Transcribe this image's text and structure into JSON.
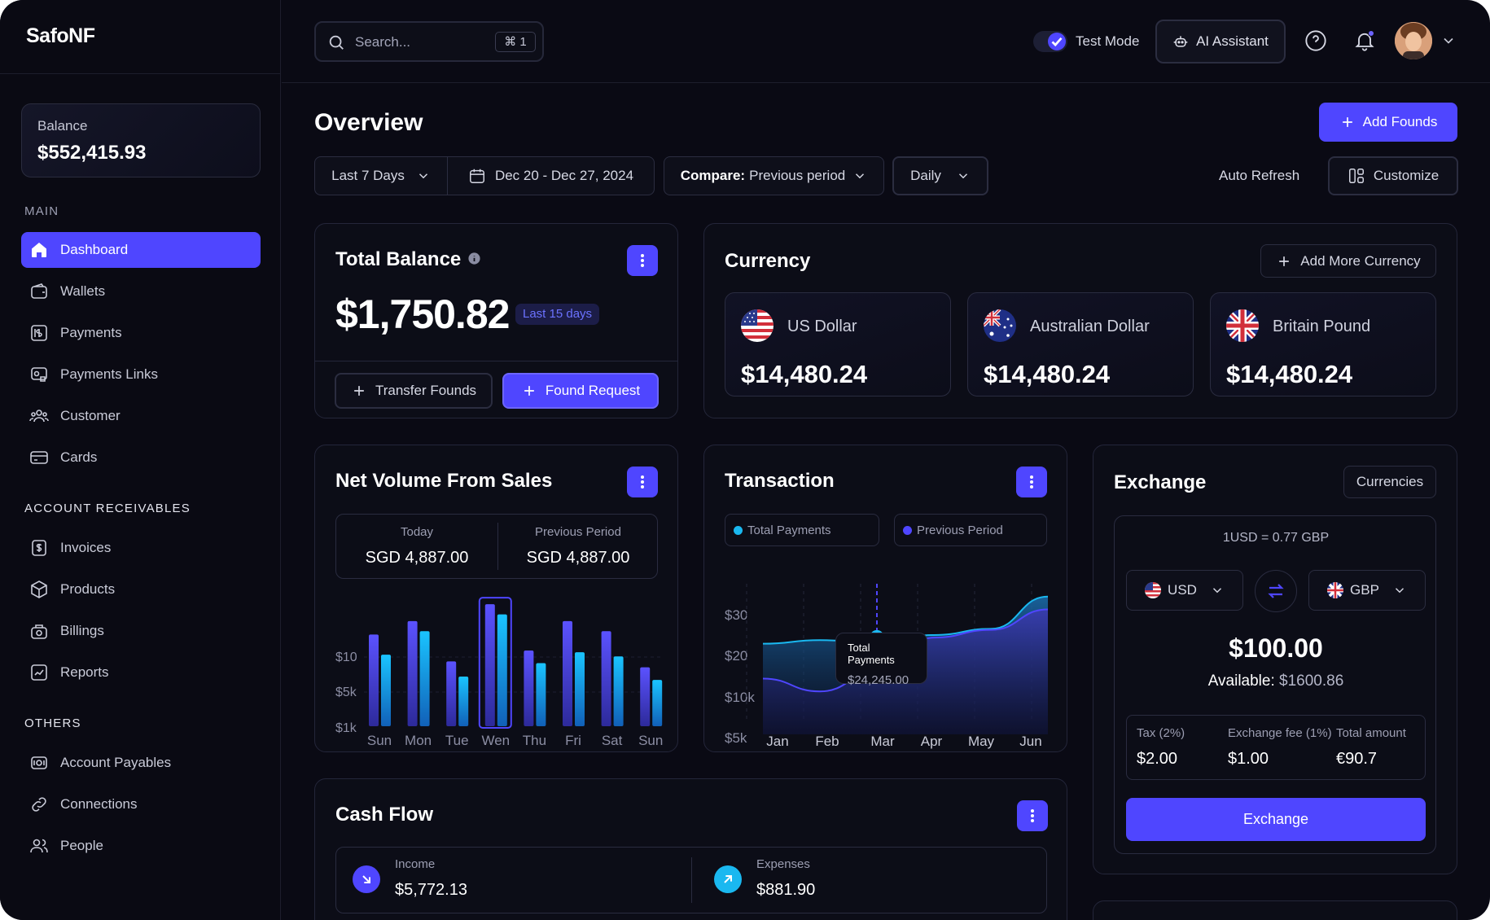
{
  "app": {
    "logo": "SafoNF"
  },
  "sidebar": {
    "balance_label": "Balance",
    "balance_value": "$552,415.93",
    "sections": {
      "main": "MAIN",
      "receivables": "ACCOUNT RECEIVABLES",
      "others": "OTHERS"
    },
    "main_items": [
      {
        "label": "Dashboard",
        "icon": "home-icon",
        "active": true
      },
      {
        "label": "Wallets",
        "icon": "wallet-icon"
      },
      {
        "label": "Payments",
        "icon": "payment-icon"
      },
      {
        "label": "Payments Links",
        "icon": "link-card-icon"
      },
      {
        "label": "Customer",
        "icon": "users-icon"
      },
      {
        "label": "Cards",
        "icon": "card-icon"
      }
    ],
    "receivable_items": [
      {
        "label": "Invoices",
        "icon": "invoice-icon"
      },
      {
        "label": "Products",
        "icon": "box-icon"
      },
      {
        "label": "Billings",
        "icon": "billing-icon"
      },
      {
        "label": "Reports",
        "icon": "report-icon"
      }
    ],
    "other_items": [
      {
        "label": "Account Payables",
        "icon": "payables-icon"
      },
      {
        "label": "Connections",
        "icon": "chain-link-icon"
      },
      {
        "label": "People",
        "icon": "people-icon"
      }
    ]
  },
  "topbar": {
    "search_placeholder": "Search...",
    "search_shortcut": "⌘ 1",
    "test_mode_label": "Test Mode",
    "ai_assistant_label": "AI Assistant"
  },
  "overview": {
    "title": "Overview",
    "add_funds_label": "Add Founds",
    "range_label": "Last 7 Days",
    "date_range": "Dec 20 - Dec 27, 2024",
    "compare_label": "Compare:",
    "compare_value": "Previous period",
    "interval": "Daily",
    "auto_refresh": "Auto Refresh",
    "customize": "Customize"
  },
  "total_balance": {
    "title": "Total Balance",
    "amount": "$1,750.82",
    "badge": "Last 15 days",
    "transfer_label": "Transfer Founds",
    "request_label": "Found Request"
  },
  "currency": {
    "title": "Currency",
    "add_more": "Add More Currency",
    "items": [
      {
        "name": "US Dollar",
        "amount": "$14,480.24",
        "flag": "us-flag-icon"
      },
      {
        "name": "Australian Dollar",
        "amount": "$14,480.24",
        "flag": "au-flag-icon"
      },
      {
        "name": "Britain Pound",
        "amount": "$14,480.24",
        "flag": "uk-flag-icon"
      }
    ]
  },
  "net_volume": {
    "title": "Net Volume From Sales",
    "today_label": "Today",
    "today_value": "SGD 4,887.00",
    "previous_label": "Previous Period",
    "previous_value": "SGD 4,887.00"
  },
  "transaction": {
    "title": "Transaction",
    "legend_total": "Total Payments",
    "legend_previous": "Previous Period",
    "tooltip_label": "Total Payments",
    "tooltip_value": "$24,245.00"
  },
  "exchange": {
    "title": "Exchange",
    "currencies_btn": "Currencies",
    "rate": "1USD = 0.77 GBP",
    "from": "USD",
    "to": "GBP",
    "amount": "$100.00",
    "available_label": "Available:",
    "available_value": "$1600.86",
    "tax_label": "Tax (2%)",
    "tax_value": "$2.00",
    "fee_label": "Exchange fee (1%)",
    "fee_value": "$1.00",
    "total_label": "Total amount",
    "total_value": "€90.7",
    "button": "Exchange"
  },
  "cash_flow": {
    "title": "Cash Flow",
    "income_label": "Income",
    "income_value": "$5,772.13",
    "expenses_label": "Expenses",
    "expenses_value": "$881.90"
  },
  "colors": {
    "accent": "#4f46ff",
    "cyan": "#1ab8f0",
    "background": "#0a0a14"
  },
  "chart_data": [
    {
      "type": "bar",
      "categories": [
        "Sun",
        "Mon",
        "Tue",
        "Wen",
        "Thu",
        "Fri",
        "Sat",
        "Sun"
      ],
      "y_ticks": [
        "$10",
        "$5k",
        "$1k"
      ],
      "series": [
        {
          "values": [
            10.9,
            12.5,
            7.7,
            14.5,
            9.0,
            12.5,
            11.3,
            7.0
          ]
        },
        {
          "values": [
            8.5,
            11.3,
            5.9,
            13.3,
            7.5,
            8.8,
            8.3,
            5.5
          ]
        }
      ],
      "highlight_index": 3
    },
    {
      "type": "area",
      "categories": [
        "Jan",
        "Feb",
        "Mar",
        "Apr",
        "May",
        "Jun"
      ],
      "y_ticks": [
        "$30",
        "$20",
        "$10k",
        "$5k"
      ],
      "series": [
        {
          "name": "Total Payments",
          "values": [
            20.3,
            21.0,
            20.5,
            22.0,
            23.2,
            29.5
          ]
        },
        {
          "name": "Previous Period",
          "values": [
            13.5,
            11.0,
            14.8,
            21.5,
            23.0,
            27.0
          ]
        }
      ]
    }
  ]
}
